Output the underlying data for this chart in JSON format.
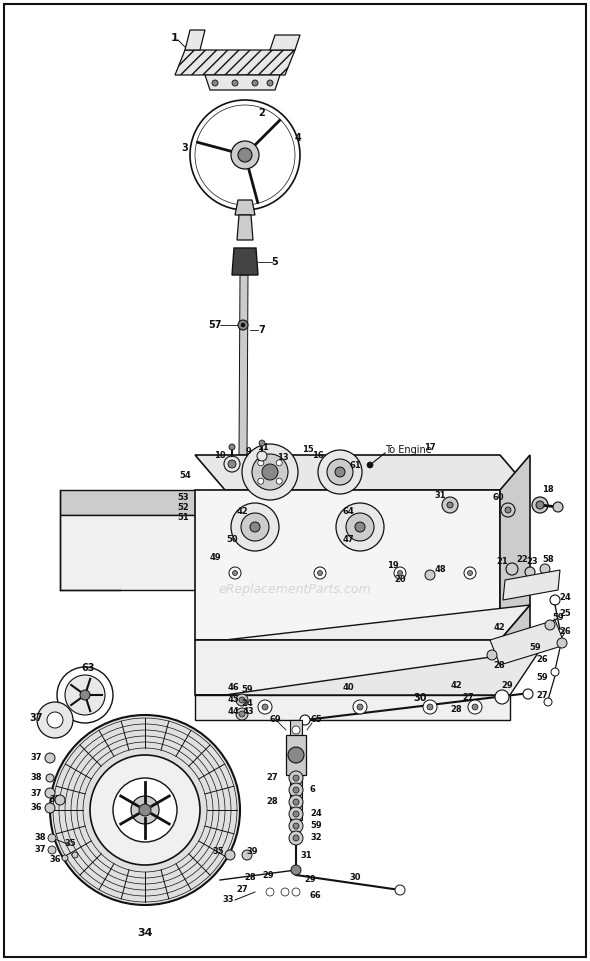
{
  "fig_width": 5.9,
  "fig_height": 9.61,
  "dpi": 100,
  "bg": "#ffffff",
  "black": "#111111",
  "gray1": "#cccccc",
  "gray2": "#888888",
  "gray3": "#444444",
  "gray_light": "#e8e8e8",
  "gray_mid": "#aaaaaa",
  "watermark": "eReplacementParts.com",
  "wm_color": "#cccccc"
}
